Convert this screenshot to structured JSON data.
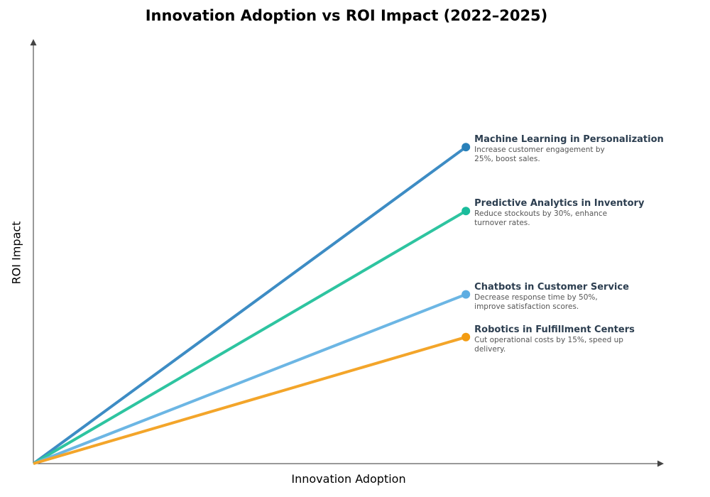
{
  "chart_data": {
    "type": "line",
    "title": "Innovation Adoption vs ROI Impact (2022–2025)",
    "xlabel": "Innovation Adoption",
    "ylabel": "ROI Impact",
    "xlim": [
      0,
      100
    ],
    "ylim": [
      0,
      100
    ],
    "grid": false,
    "ticks_shown": false,
    "series": [
      {
        "name": "Machine Learning in Personalization",
        "description": "Increase customer engagement by 25%, boost sales.",
        "color": "#2980b9",
        "line_color": "#3d8cc4",
        "x": [
          0,
          68.6
        ],
        "y": [
          0,
          74.8
        ]
      },
      {
        "name": "Predictive Analytics in Inventory",
        "description": "Reduce stockouts by 30%, enhance turnover rates.",
        "color": "#1abc9c",
        "line_color": "#2ec4a0",
        "x": [
          0,
          68.6
        ],
        "y": [
          0,
          59.7
        ]
      },
      {
        "name": "Chatbots in Customer Service",
        "description": "Decrease response time by 50%, improve satisfaction scores.",
        "color": "#5dade2",
        "line_color": "#6cb6e4",
        "x": [
          0,
          68.6
        ],
        "y": [
          0,
          40.0
        ]
      },
      {
        "name": "Robotics in Fulfillment Centers",
        "description": "Cut operational costs by 15%, speed up delivery.",
        "color": "#f39c12",
        "line_color": "#f3a52a",
        "x": [
          0,
          68.6
        ],
        "y": [
          0,
          29.9
        ]
      }
    ]
  }
}
